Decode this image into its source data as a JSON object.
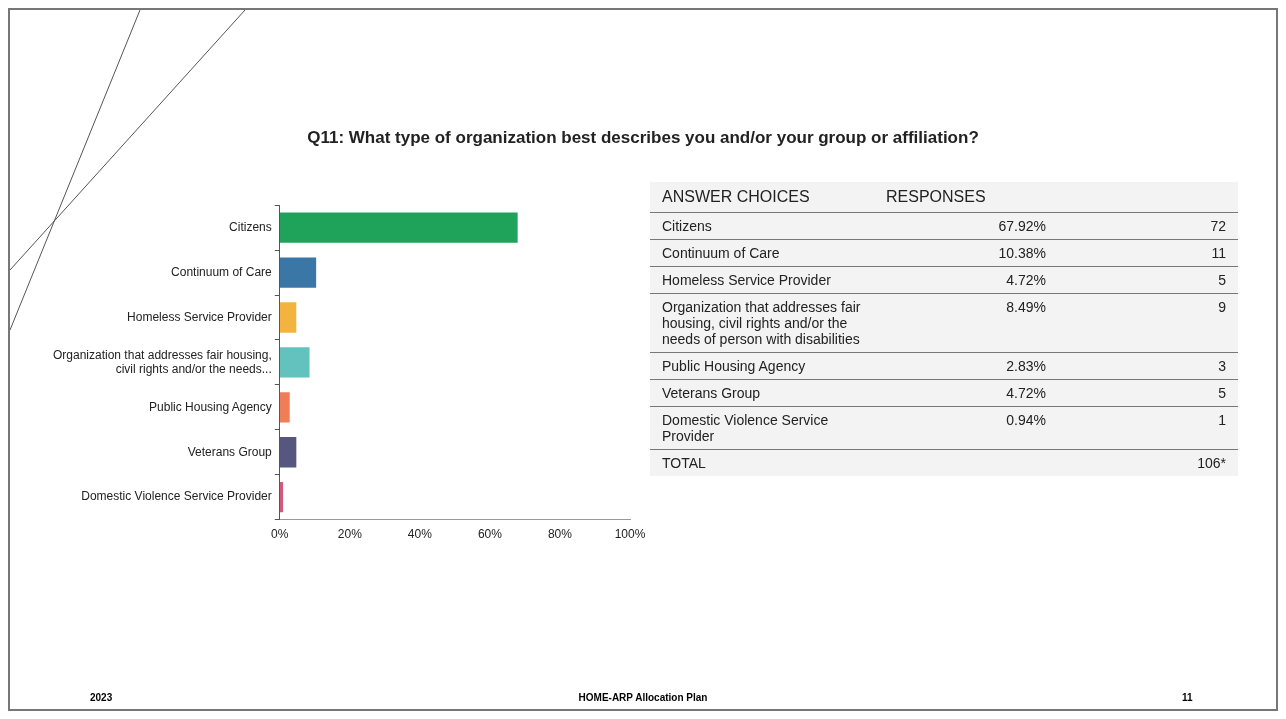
{
  "chart_data": [
    {
      "type": "bar",
      "orientation": "horizontal",
      "title": "Q11: What type of organization best describes you and/or your group or affiliation?",
      "categories": [
        "Citizens",
        "Continuum of Care",
        "Homeless Service Provider",
        "Organization that addresses fair housing, civil rights and/or the needs...",
        "Public Housing Agency",
        "Veterans Group",
        "Domestic Violence Service Provider"
      ],
      "values": [
        67.92,
        10.38,
        4.72,
        8.49,
        2.83,
        4.72,
        0.94
      ],
      "value_labels": [
        "67.92%",
        "10.38%",
        "4.72%",
        "8.49%",
        "2.83%",
        "4.72%",
        "0.94%"
      ],
      "colors": [
        "#1fa35a",
        "#3a76a6",
        "#f3b43f",
        "#63c2bd",
        "#ef7d58",
        "#56567f",
        "#cf5c7c"
      ],
      "xlim": [
        0,
        100
      ],
      "xticks": [
        {
          "value": 0,
          "label": "0%"
        },
        {
          "value": 20,
          "label": "20%"
        },
        {
          "value": 40,
          "label": "40%"
        },
        {
          "value": 60,
          "label": "60%"
        },
        {
          "value": 80,
          "label": "80%"
        },
        {
          "value": 100,
          "label": "100%"
        }
      ],
      "grid": false,
      "legend": false,
      "annotations": [
        "2023",
        "HOME-ARP Allocation Plan",
        "11"
      ]
    },
    {
      "type": "other",
      "annotations": [
        "ANSWER CHOICES",
        "TOTAL"
      ],
      "categories": [
        "Citizens",
        "Continuum of Care",
        "Homeless Service Provider",
        "Organization that addresses fair housing, civil rights and/or the needs of person with disabilities",
        "Public Housing Agency",
        "Veterans Group",
        "Domestic Violence Service Provider"
      ],
      "data_labels": true,
      "totals": [
        "106*"
      ],
      "series": [
        {
          "name": "RESPONSES",
          "values": [
            72,
            11,
            5,
            9,
            3,
            5,
            1
          ]
        }
      ]
    }
  ]
}
